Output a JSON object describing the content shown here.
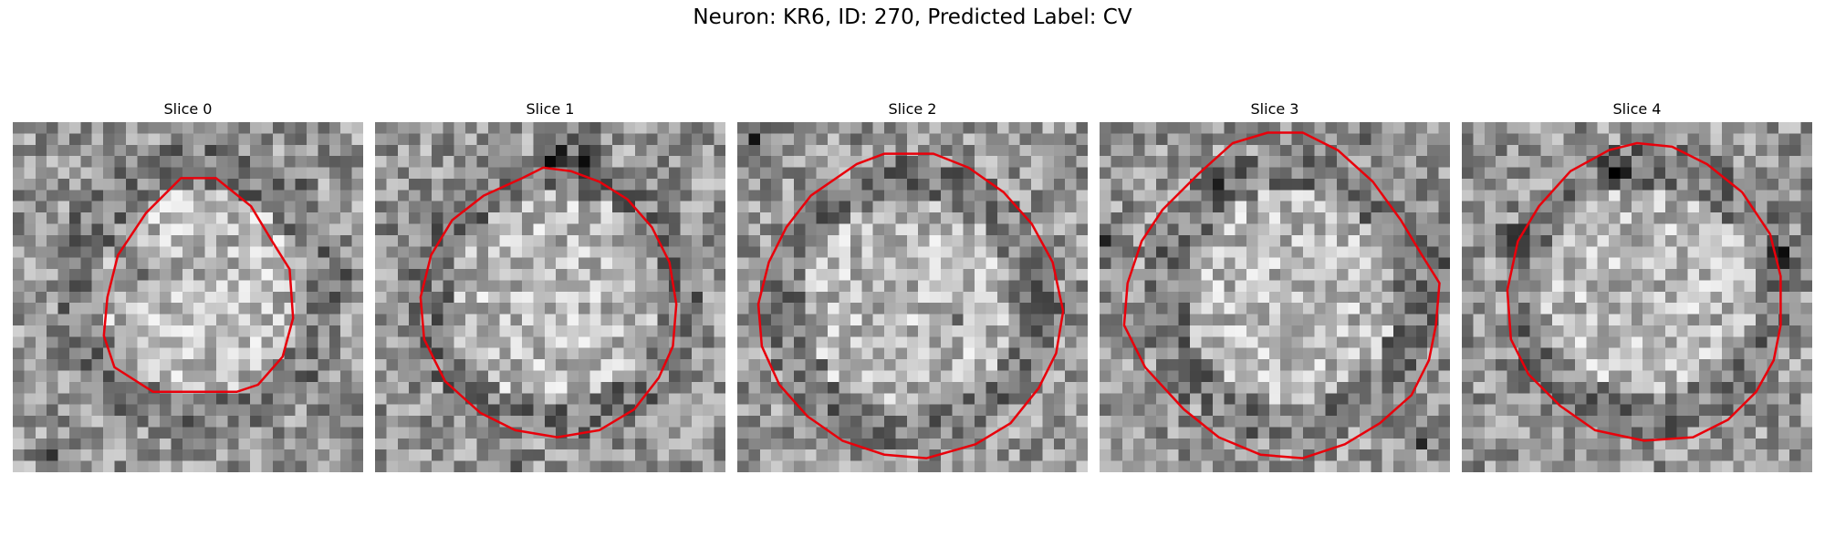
{
  "figure": {
    "title": "Neuron: KR6, ID: 270, Predicted Label: CV"
  },
  "panels": [
    {
      "title": "Slice 0",
      "seed": 11,
      "contour": [
        [
          0.48,
          0.16
        ],
        [
          0.58,
          0.16
        ],
        [
          0.68,
          0.24
        ],
        [
          0.74,
          0.34
        ],
        [
          0.79,
          0.42
        ],
        [
          0.8,
          0.56
        ],
        [
          0.77,
          0.67
        ],
        [
          0.7,
          0.75
        ],
        [
          0.64,
          0.77
        ],
        [
          0.4,
          0.77
        ],
        [
          0.29,
          0.7
        ],
        [
          0.26,
          0.61
        ],
        [
          0.27,
          0.5
        ],
        [
          0.3,
          0.38
        ],
        [
          0.38,
          0.26
        ]
      ],
      "dark_spots": [
        [
          0.35,
          0.4,
          0.07
        ],
        [
          0.12,
          0.97,
          0.05
        ],
        [
          0.3,
          0.34,
          0.05
        ]
      ]
    },
    {
      "title": "Slice 1",
      "seed": 23,
      "contour": [
        [
          0.42,
          0.16
        ],
        [
          0.48,
          0.13
        ],
        [
          0.56,
          0.14
        ],
        [
          0.64,
          0.17
        ],
        [
          0.72,
          0.22
        ],
        [
          0.79,
          0.3
        ],
        [
          0.84,
          0.4
        ],
        [
          0.86,
          0.52
        ],
        [
          0.85,
          0.64
        ],
        [
          0.81,
          0.73
        ],
        [
          0.74,
          0.82
        ],
        [
          0.64,
          0.88
        ],
        [
          0.52,
          0.9
        ],
        [
          0.4,
          0.88
        ],
        [
          0.3,
          0.83
        ],
        [
          0.2,
          0.74
        ],
        [
          0.14,
          0.62
        ],
        [
          0.13,
          0.5
        ],
        [
          0.16,
          0.38
        ],
        [
          0.22,
          0.28
        ],
        [
          0.31,
          0.21
        ]
      ],
      "dark_spots": [
        [
          0.6,
          0.08,
          0.08
        ],
        [
          0.5,
          0.1,
          0.06
        ],
        [
          0.04,
          0.3,
          0.05
        ],
        [
          0.4,
          0.98,
          0.05
        ]
      ]
    },
    {
      "title": "Slice 2",
      "seed": 37,
      "contour": [
        [
          0.34,
          0.12
        ],
        [
          0.42,
          0.09
        ],
        [
          0.56,
          0.09
        ],
        [
          0.66,
          0.13
        ],
        [
          0.76,
          0.2
        ],
        [
          0.84,
          0.29
        ],
        [
          0.9,
          0.4
        ],
        [
          0.93,
          0.54
        ],
        [
          0.91,
          0.66
        ],
        [
          0.86,
          0.76
        ],
        [
          0.78,
          0.86
        ],
        [
          0.68,
          0.92
        ],
        [
          0.54,
          0.96
        ],
        [
          0.42,
          0.95
        ],
        [
          0.3,
          0.91
        ],
        [
          0.2,
          0.84
        ],
        [
          0.12,
          0.75
        ],
        [
          0.07,
          0.64
        ],
        [
          0.06,
          0.52
        ],
        [
          0.09,
          0.4
        ],
        [
          0.14,
          0.3
        ],
        [
          0.21,
          0.21
        ]
      ],
      "dark_spots": [
        [
          0.61,
          0.56,
          0.05
        ],
        [
          0.93,
          0.52,
          0.05
        ],
        [
          0.05,
          0.04,
          0.05
        ]
      ]
    },
    {
      "title": "Slice 3",
      "seed": 53,
      "contour": [
        [
          0.38,
          0.06
        ],
        [
          0.48,
          0.03
        ],
        [
          0.58,
          0.03
        ],
        [
          0.68,
          0.08
        ],
        [
          0.78,
          0.17
        ],
        [
          0.86,
          0.28
        ],
        [
          0.92,
          0.38
        ],
        [
          0.97,
          0.46
        ],
        [
          0.96,
          0.58
        ],
        [
          0.94,
          0.68
        ],
        [
          0.89,
          0.78
        ],
        [
          0.8,
          0.86
        ],
        [
          0.7,
          0.92
        ],
        [
          0.58,
          0.96
        ],
        [
          0.46,
          0.95
        ],
        [
          0.34,
          0.9
        ],
        [
          0.24,
          0.82
        ],
        [
          0.13,
          0.7
        ],
        [
          0.07,
          0.58
        ],
        [
          0.08,
          0.46
        ],
        [
          0.12,
          0.34
        ],
        [
          0.18,
          0.25
        ],
        [
          0.28,
          0.15
        ]
      ],
      "dark_spots": [
        [
          0.33,
          0.16,
          0.06
        ],
        [
          0.72,
          0.05,
          0.05
        ],
        [
          0.02,
          0.35,
          0.06
        ],
        [
          0.97,
          0.4,
          0.06
        ],
        [
          0.3,
          0.92,
          0.06
        ],
        [
          0.92,
          0.9,
          0.05
        ]
      ]
    },
    {
      "title": "Slice 4",
      "seed": 71,
      "contour": [
        [
          0.42,
          0.08
        ],
        [
          0.5,
          0.06
        ],
        [
          0.6,
          0.07
        ],
        [
          0.7,
          0.12
        ],
        [
          0.8,
          0.2
        ],
        [
          0.88,
          0.32
        ],
        [
          0.91,
          0.44
        ],
        [
          0.91,
          0.58
        ],
        [
          0.89,
          0.68
        ],
        [
          0.84,
          0.77
        ],
        [
          0.76,
          0.85
        ],
        [
          0.66,
          0.9
        ],
        [
          0.52,
          0.91
        ],
        [
          0.38,
          0.88
        ],
        [
          0.28,
          0.81
        ],
        [
          0.19,
          0.72
        ],
        [
          0.14,
          0.62
        ],
        [
          0.13,
          0.48
        ],
        [
          0.16,
          0.34
        ],
        [
          0.22,
          0.24
        ],
        [
          0.31,
          0.14
        ]
      ],
      "dark_spots": [
        [
          0.44,
          0.14,
          0.07
        ],
        [
          0.13,
          0.33,
          0.06
        ],
        [
          0.42,
          0.96,
          0.06
        ],
        [
          0.92,
          0.38,
          0.05
        ]
      ]
    }
  ],
  "colors": {
    "contour": "#e8000b"
  }
}
